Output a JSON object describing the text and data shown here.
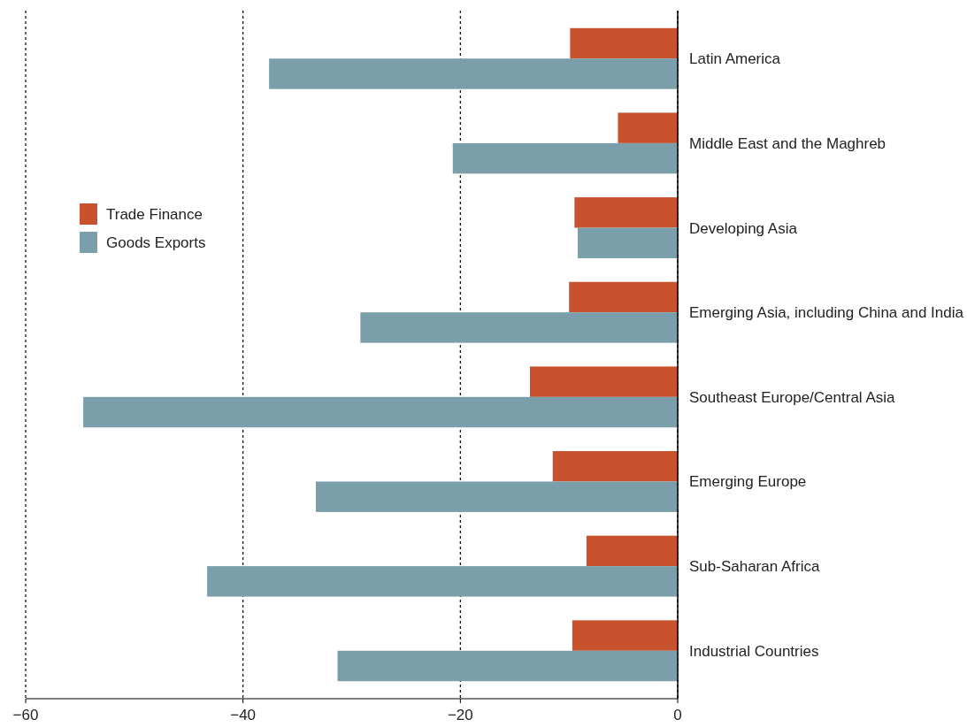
{
  "chart_data": {
    "type": "bar",
    "orientation": "horizontal",
    "categories": [
      "Latin America",
      "Middle East and the Maghreb",
      "Developing Asia",
      "Emerging Asia, including China and India",
      "Southeast Europe/Central Asia",
      "Emerging Europe",
      "Sub-Saharan Africa",
      "Industrial Countries"
    ],
    "series": [
      {
        "name": "Trade Finance",
        "color": "#c8522e",
        "values": [
          -9.9,
          -5.5,
          -9.5,
          -10,
          -13.6,
          -11.5,
          -8.4,
          -9.7
        ]
      },
      {
        "name": "Goods Exports",
        "color": "#7b9eab",
        "values": [
          -37.6,
          -20.7,
          -9.2,
          -29.2,
          -54.7,
          -33.3,
          -43.3,
          -31.3
        ]
      }
    ],
    "xlim": [
      -60,
      0
    ],
    "xticks": [
      -60,
      -40,
      -20,
      0
    ],
    "grid": "x",
    "legend": "top left"
  }
}
